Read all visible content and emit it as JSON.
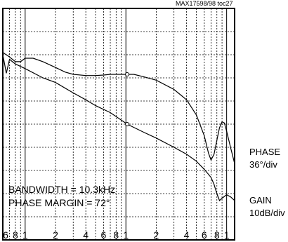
{
  "chart_data": {
    "type": "line",
    "chart_id": "MAX17598/98 toc27",
    "x_scale": "log",
    "x_tick_labels": [
      "6",
      "8",
      "1",
      "2",
      "4",
      "6",
      "8",
      "1",
      "2",
      "4",
      "6",
      "8",
      "1"
    ],
    "x_decades": [
      1000,
      10000,
      100000
    ],
    "grid": true,
    "annotations": {
      "bandwidth": "BANDWIDTH = 10.3kHz",
      "phase_margin": "PHASE MARGIN = 72°"
    },
    "scales": {
      "phase": {
        "name": "PHASE",
        "per_div": "36°/div"
      },
      "gain": {
        "name": "GAIN",
        "per_div": "10dB/div"
      }
    },
    "vertical_divisions": 10,
    "series": [
      {
        "key": "phase",
        "points": [
          [
            600,
            8.1
          ],
          [
            700,
            7.9
          ],
          [
            800,
            7.7
          ],
          [
            900,
            7.7
          ],
          [
            1000,
            7.85
          ],
          [
            1200,
            7.85
          ],
          [
            1500,
            7.7
          ],
          [
            2000,
            7.45
          ],
          [
            2500,
            7.25
          ],
          [
            3000,
            7.15
          ],
          [
            4000,
            7.1
          ],
          [
            5000,
            7.1
          ],
          [
            6000,
            7.12
          ],
          [
            7000,
            7.15
          ],
          [
            8000,
            7.15
          ],
          [
            10300,
            7.15
          ],
          [
            12000,
            7.15
          ],
          [
            15000,
            7.05
          ],
          [
            20000,
            6.9
          ],
          [
            30000,
            6.5
          ],
          [
            40000,
            6.05
          ],
          [
            50000,
            5.4
          ],
          [
            60000,
            4.5
          ],
          [
            66000,
            3.75
          ],
          [
            70000,
            3.45
          ],
          [
            75000,
            3.7
          ],
          [
            80000,
            4.3
          ],
          [
            85000,
            4.85
          ],
          [
            90000,
            5.1
          ],
          [
            95000,
            5.05
          ],
          [
            100000,
            4.7
          ],
          [
            110000,
            3.95
          ],
          [
            120000,
            3.3
          ]
        ]
      },
      {
        "key": "gain",
        "points": [
          [
            600,
            8.0
          ],
          [
            650,
            7.2
          ],
          [
            700,
            7.8
          ],
          [
            800,
            7.6
          ],
          [
            1000,
            7.4
          ],
          [
            1500,
            7.0
          ],
          [
            2000,
            6.8
          ],
          [
            3000,
            6.35
          ],
          [
            4000,
            6.05
          ],
          [
            5000,
            5.8
          ],
          [
            7000,
            5.5
          ],
          [
            10300,
            5.0
          ],
          [
            15000,
            4.65
          ],
          [
            20000,
            4.4
          ],
          [
            30000,
            4.0
          ],
          [
            40000,
            3.7
          ],
          [
            50000,
            3.4
          ],
          [
            60000,
            3.05
          ],
          [
            70000,
            2.7
          ],
          [
            75000,
            2.4
          ],
          [
            80000,
            2.0
          ],
          [
            85000,
            1.7
          ],
          [
            90000,
            1.8
          ],
          [
            100000,
            1.95
          ],
          [
            110000,
            1.85
          ],
          [
            120000,
            1.7
          ]
        ]
      }
    ]
  }
}
